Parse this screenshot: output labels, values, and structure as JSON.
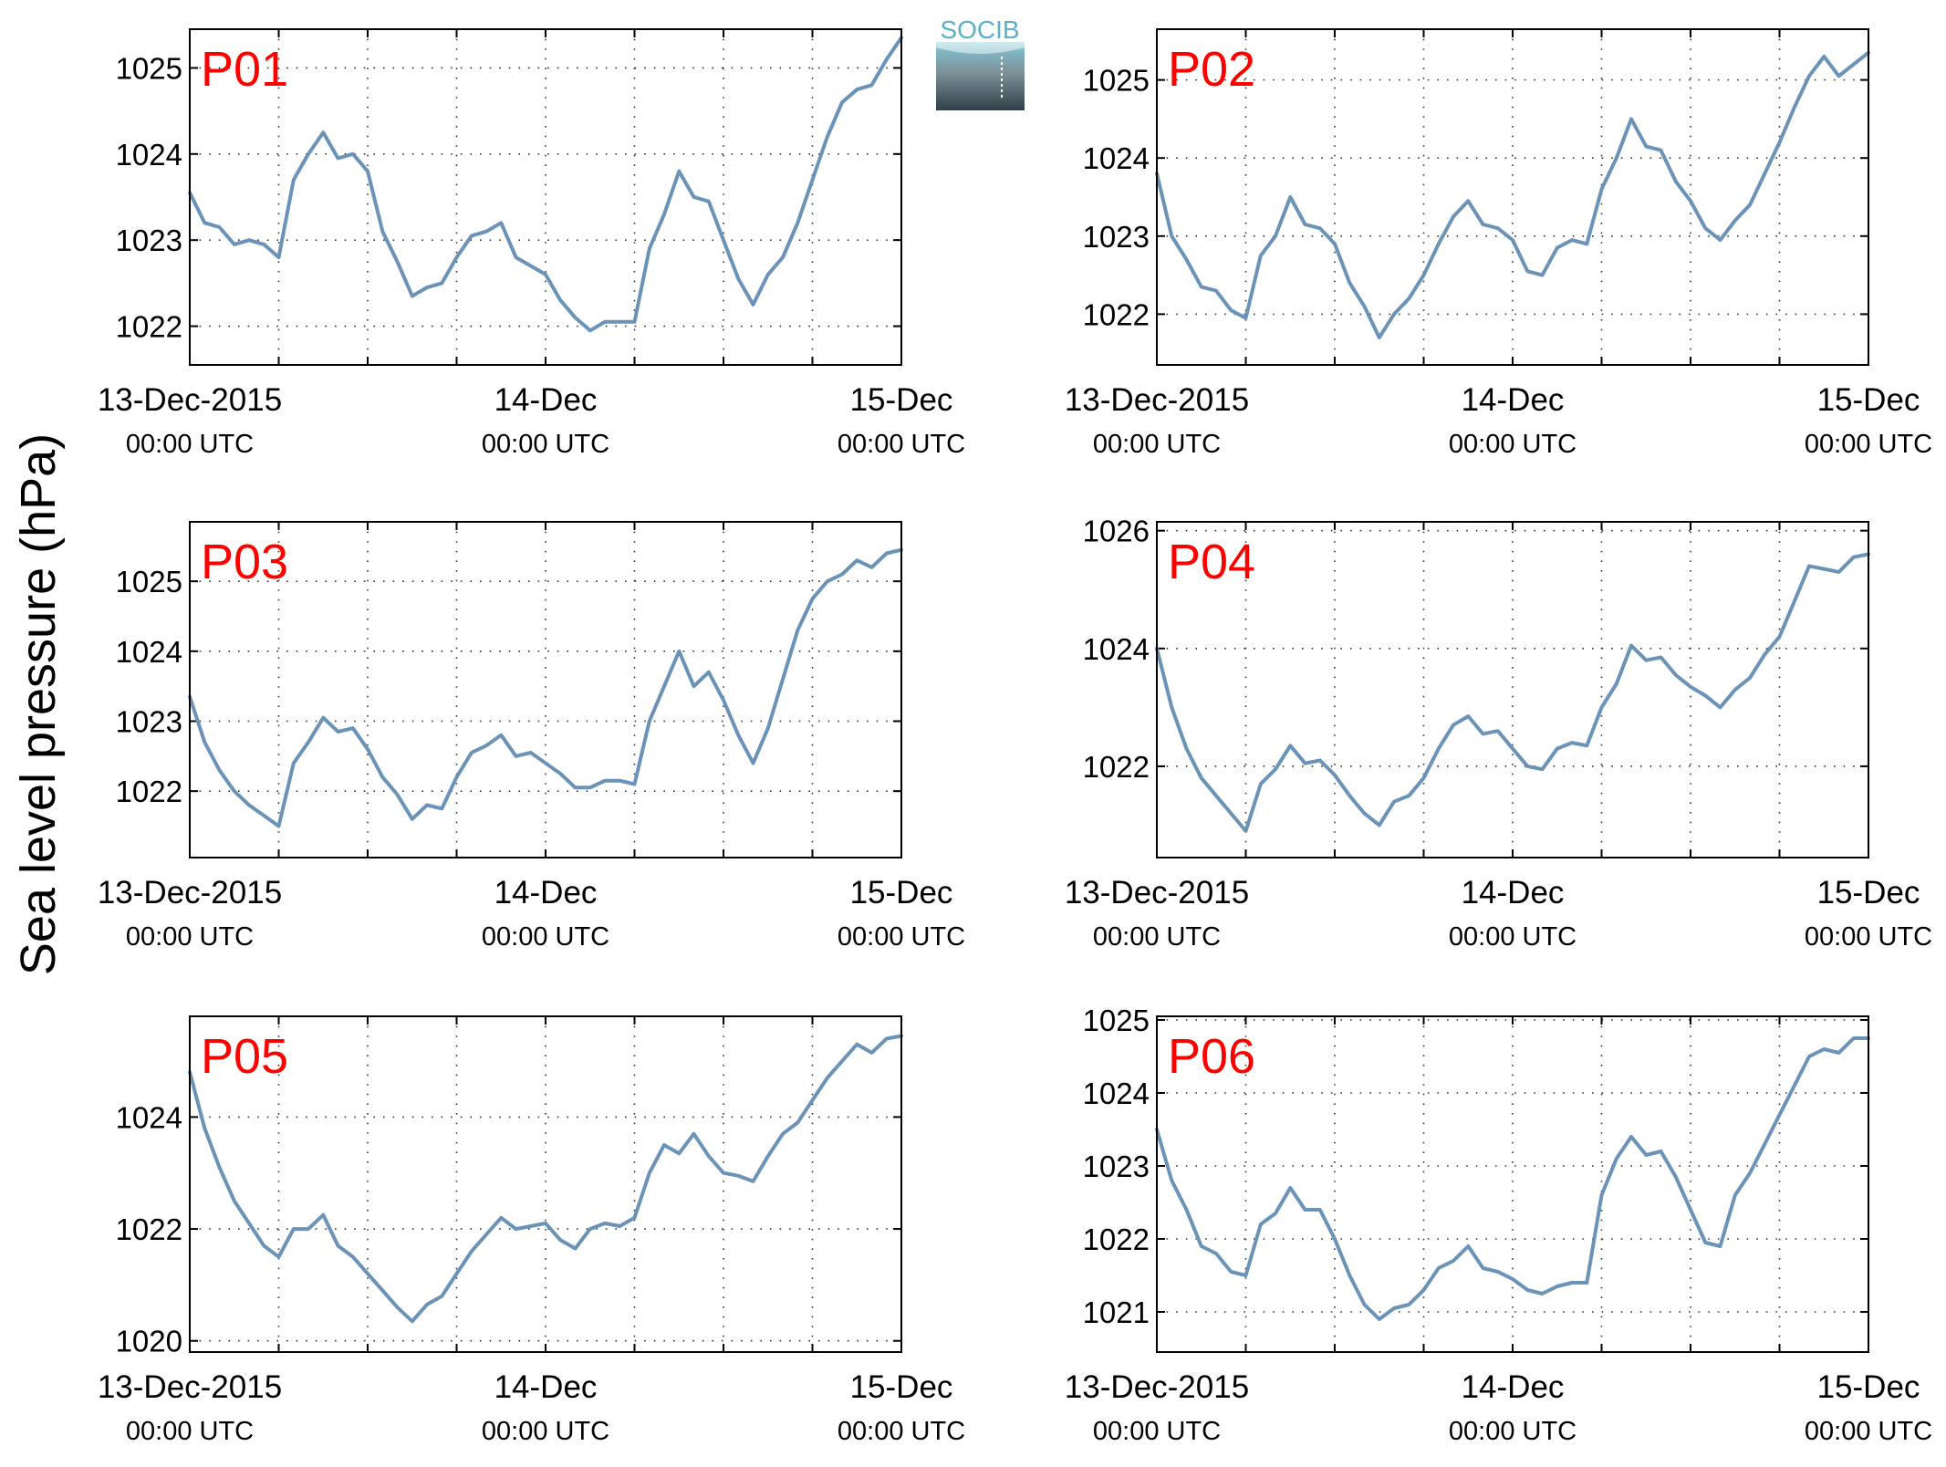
{
  "figure": {
    "ylabel": "Sea level pressure (hPa)",
    "logo_text": "SOCIB",
    "colors": {
      "line": "#6b93b8",
      "panel_label": "#ff0000",
      "axis": "#000000",
      "grid": "#333333"
    }
  },
  "chart_data": [
    {
      "type": "line",
      "title": "P01",
      "x_ticks": [
        {
          "major": "13-Dec-2015",
          "minor": "00:00 UTC"
        },
        {
          "major": "14-Dec",
          "minor": "00:00 UTC"
        },
        {
          "major": "15-Dec",
          "minor": "00:00 UTC"
        }
      ],
      "xlim": [
        0,
        48
      ],
      "ylim": [
        1021.55,
        1025.45
      ],
      "yticks": [
        1022,
        1023,
        1024,
        1025
      ],
      "grid": true,
      "series": [
        {
          "x": [
            0,
            1,
            2,
            3,
            4,
            5,
            6,
            7,
            8,
            9,
            10,
            11,
            12,
            13,
            14,
            15,
            16,
            17,
            18,
            19,
            20,
            21,
            22,
            23,
            24,
            25,
            26,
            27,
            28,
            29,
            30,
            31,
            32,
            33,
            34,
            35,
            36,
            37,
            38,
            39,
            40,
            41,
            42,
            43,
            44,
            45,
            46,
            47,
            48
          ],
          "y": [
            1023.55,
            1023.2,
            1023.15,
            1022.95,
            1023.0,
            1022.95,
            1022.8,
            1023.7,
            1024.0,
            1024.25,
            1023.95,
            1024.0,
            1023.8,
            1023.1,
            1022.75,
            1022.35,
            1022.45,
            1022.5,
            1022.8,
            1023.05,
            1023.1,
            1023.2,
            1022.8,
            1022.7,
            1022.6,
            1022.3,
            1022.1,
            1021.95,
            1022.05,
            1022.05,
            1022.05,
            1022.9,
            1023.3,
            1023.8,
            1023.5,
            1023.45,
            1023.0,
            1022.55,
            1022.25,
            1022.6,
            1022.8,
            1023.2,
            1023.7,
            1024.2,
            1024.6,
            1024.75,
            1024.8,
            1025.1,
            1025.35
          ]
        }
      ]
    },
    {
      "type": "line",
      "title": "P02",
      "x_ticks": [
        {
          "major": "13-Dec-2015",
          "minor": "00:00 UTC"
        },
        {
          "major": "14-Dec",
          "minor": "00:00 UTC"
        },
        {
          "major": "15-Dec",
          "minor": "00:00 UTC"
        }
      ],
      "xlim": [
        0,
        48
      ],
      "ylim": [
        1021.35,
        1025.65
      ],
      "yticks": [
        1022,
        1023,
        1024,
        1025
      ],
      "grid": true,
      "series": [
        {
          "x": [
            0,
            1,
            2,
            3,
            4,
            5,
            6,
            7,
            8,
            9,
            10,
            11,
            12,
            13,
            14,
            15,
            16,
            17,
            18,
            19,
            20,
            21,
            22,
            23,
            24,
            25,
            26,
            27,
            28,
            29,
            30,
            31,
            32,
            33,
            34,
            35,
            36,
            37,
            38,
            39,
            40,
            41,
            42,
            43,
            44,
            45,
            46,
            47,
            48
          ],
          "y": [
            1023.8,
            1023.0,
            1022.7,
            1022.35,
            1022.3,
            1022.05,
            1021.95,
            1022.75,
            1023.0,
            1023.5,
            1023.15,
            1023.1,
            1022.9,
            1022.4,
            1022.1,
            1021.7,
            1022.0,
            1022.2,
            1022.5,
            1022.9,
            1023.25,
            1023.45,
            1023.15,
            1023.1,
            1022.95,
            1022.55,
            1022.5,
            1022.85,
            1022.95,
            1022.9,
            1023.6,
            1024.0,
            1024.5,
            1024.15,
            1024.1,
            1023.7,
            1023.45,
            1023.1,
            1022.95,
            1023.2,
            1023.4,
            1023.8,
            1024.2,
            1024.65,
            1025.05,
            1025.3,
            1025.05,
            1025.2,
            1025.35
          ]
        }
      ]
    },
    {
      "type": "line",
      "title": "P03",
      "x_ticks": [
        {
          "major": "13-Dec-2015",
          "minor": "00:00 UTC"
        },
        {
          "major": "14-Dec",
          "minor": "00:00 UTC"
        },
        {
          "major": "15-Dec",
          "minor": "00:00 UTC"
        }
      ],
      "xlim": [
        0,
        48
      ],
      "ylim": [
        1021.05,
        1025.85
      ],
      "yticks": [
        1022,
        1023,
        1024,
        1025
      ],
      "grid": true,
      "series": [
        {
          "x": [
            0,
            1,
            2,
            3,
            4,
            5,
            6,
            7,
            8,
            9,
            10,
            11,
            12,
            13,
            14,
            15,
            16,
            17,
            18,
            19,
            20,
            21,
            22,
            23,
            24,
            25,
            26,
            27,
            28,
            29,
            30,
            31,
            32,
            33,
            34,
            35,
            36,
            37,
            38,
            39,
            40,
            41,
            42,
            43,
            44,
            45,
            46,
            47,
            48
          ],
          "y": [
            1023.35,
            1022.7,
            1022.3,
            1022.0,
            1021.8,
            1021.65,
            1021.5,
            1022.4,
            1022.7,
            1023.05,
            1022.85,
            1022.9,
            1022.6,
            1022.2,
            1021.95,
            1021.6,
            1021.8,
            1021.75,
            1022.2,
            1022.55,
            1022.65,
            1022.8,
            1022.5,
            1022.55,
            1022.4,
            1022.25,
            1022.05,
            1022.05,
            1022.15,
            1022.15,
            1022.1,
            1023.0,
            1023.5,
            1024.0,
            1023.5,
            1023.7,
            1023.3,
            1022.8,
            1022.4,
            1022.9,
            1023.6,
            1024.3,
            1024.75,
            1025.0,
            1025.1,
            1025.3,
            1025.2,
            1025.4,
            1025.45
          ]
        }
      ]
    },
    {
      "type": "line",
      "title": "P04",
      "x_ticks": [
        {
          "major": "13-Dec-2015",
          "minor": "00:00 UTC"
        },
        {
          "major": "14-Dec",
          "minor": "00:00 UTC"
        },
        {
          "major": "15-Dec",
          "minor": "00:00 UTC"
        }
      ],
      "xlim": [
        0,
        48
      ],
      "ylim": [
        1020.45,
        1026.15
      ],
      "yticks": [
        1022,
        1024,
        1026
      ],
      "grid": true,
      "series": [
        {
          "x": [
            0,
            1,
            2,
            3,
            4,
            5,
            6,
            7,
            8,
            9,
            10,
            11,
            12,
            13,
            14,
            15,
            16,
            17,
            18,
            19,
            20,
            21,
            22,
            23,
            24,
            25,
            26,
            27,
            28,
            29,
            30,
            31,
            32,
            33,
            34,
            35,
            36,
            37,
            38,
            39,
            40,
            41,
            42,
            43,
            44,
            45,
            46,
            47,
            48
          ],
          "y": [
            1024.0,
            1023.0,
            1022.3,
            1021.8,
            1021.5,
            1021.2,
            1020.9,
            1021.7,
            1021.95,
            1022.35,
            1022.05,
            1022.1,
            1021.85,
            1021.5,
            1021.2,
            1021.0,
            1021.4,
            1021.5,
            1021.8,
            1022.3,
            1022.7,
            1022.85,
            1022.55,
            1022.6,
            1022.3,
            1022.0,
            1021.95,
            1022.3,
            1022.4,
            1022.35,
            1023.0,
            1023.4,
            1024.05,
            1023.8,
            1023.85,
            1023.55,
            1023.35,
            1023.2,
            1023.0,
            1023.3,
            1023.5,
            1023.9,
            1024.2,
            1024.8,
            1025.4,
            1025.35,
            1025.3,
            1025.55,
            1025.6
          ]
        }
      ]
    },
    {
      "type": "line",
      "title": "P05",
      "x_ticks": [
        {
          "major": "13-Dec-2015",
          "minor": "00:00 UTC"
        },
        {
          "major": "14-Dec",
          "minor": "00:00 UTC"
        },
        {
          "major": "15-Dec",
          "minor": "00:00 UTC"
        }
      ],
      "xlim": [
        0,
        48
      ],
      "ylim": [
        1019.8,
        1025.8
      ],
      "yticks": [
        1020,
        1022,
        1024
      ],
      "grid": true,
      "series": [
        {
          "x": [
            0,
            1,
            2,
            3,
            4,
            5,
            6,
            7,
            8,
            9,
            10,
            11,
            12,
            13,
            14,
            15,
            16,
            17,
            18,
            19,
            20,
            21,
            22,
            23,
            24,
            25,
            26,
            27,
            28,
            29,
            30,
            31,
            32,
            33,
            34,
            35,
            36,
            37,
            38,
            39,
            40,
            41,
            42,
            43,
            44,
            45,
            46,
            47,
            48
          ],
          "y": [
            1024.8,
            1023.8,
            1023.1,
            1022.5,
            1022.1,
            1021.7,
            1021.5,
            1022.0,
            1022.0,
            1022.25,
            1021.7,
            1021.5,
            1021.2,
            1020.9,
            1020.6,
            1020.35,
            1020.65,
            1020.8,
            1021.2,
            1021.6,
            1021.9,
            1022.2,
            1022.0,
            1022.05,
            1022.1,
            1021.8,
            1021.65,
            1022.0,
            1022.1,
            1022.05,
            1022.2,
            1023.0,
            1023.5,
            1023.35,
            1023.7,
            1023.3,
            1023.0,
            1022.95,
            1022.85,
            1023.3,
            1023.7,
            1023.9,
            1024.3,
            1024.7,
            1025.0,
            1025.3,
            1025.15,
            1025.4,
            1025.45
          ]
        }
      ]
    },
    {
      "type": "line",
      "title": "P06",
      "x_ticks": [
        {
          "major": "13-Dec-2015",
          "minor": "00:00 UTC"
        },
        {
          "major": "14-Dec",
          "minor": "00:00 UTC"
        },
        {
          "major": "15-Dec",
          "minor": "00:00 UTC"
        }
      ],
      "xlim": [
        0,
        48
      ],
      "ylim": [
        1020.45,
        1025.05
      ],
      "yticks": [
        1021,
        1022,
        1023,
        1024,
        1025
      ],
      "grid": true,
      "series": [
        {
          "x": [
            0,
            1,
            2,
            3,
            4,
            5,
            6,
            7,
            8,
            9,
            10,
            11,
            12,
            13,
            14,
            15,
            16,
            17,
            18,
            19,
            20,
            21,
            22,
            23,
            24,
            25,
            26,
            27,
            28,
            29,
            30,
            31,
            32,
            33,
            34,
            35,
            36,
            37,
            38,
            39,
            40,
            41,
            42,
            43,
            44,
            45,
            46,
            47,
            48
          ],
          "y": [
            1023.5,
            1022.8,
            1022.4,
            1021.9,
            1021.8,
            1021.55,
            1021.5,
            1022.2,
            1022.35,
            1022.7,
            1022.4,
            1022.4,
            1022.0,
            1021.5,
            1021.1,
            1020.9,
            1021.05,
            1021.1,
            1021.3,
            1021.6,
            1021.7,
            1021.9,
            1021.6,
            1021.55,
            1021.45,
            1021.3,
            1021.25,
            1021.35,
            1021.4,
            1021.4,
            1022.6,
            1023.1,
            1023.4,
            1023.15,
            1023.2,
            1022.85,
            1022.4,
            1021.95,
            1021.9,
            1022.6,
            1022.9,
            1023.3,
            1023.7,
            1024.1,
            1024.5,
            1024.6,
            1024.55,
            1024.75,
            1024.75
          ]
        }
      ]
    }
  ]
}
